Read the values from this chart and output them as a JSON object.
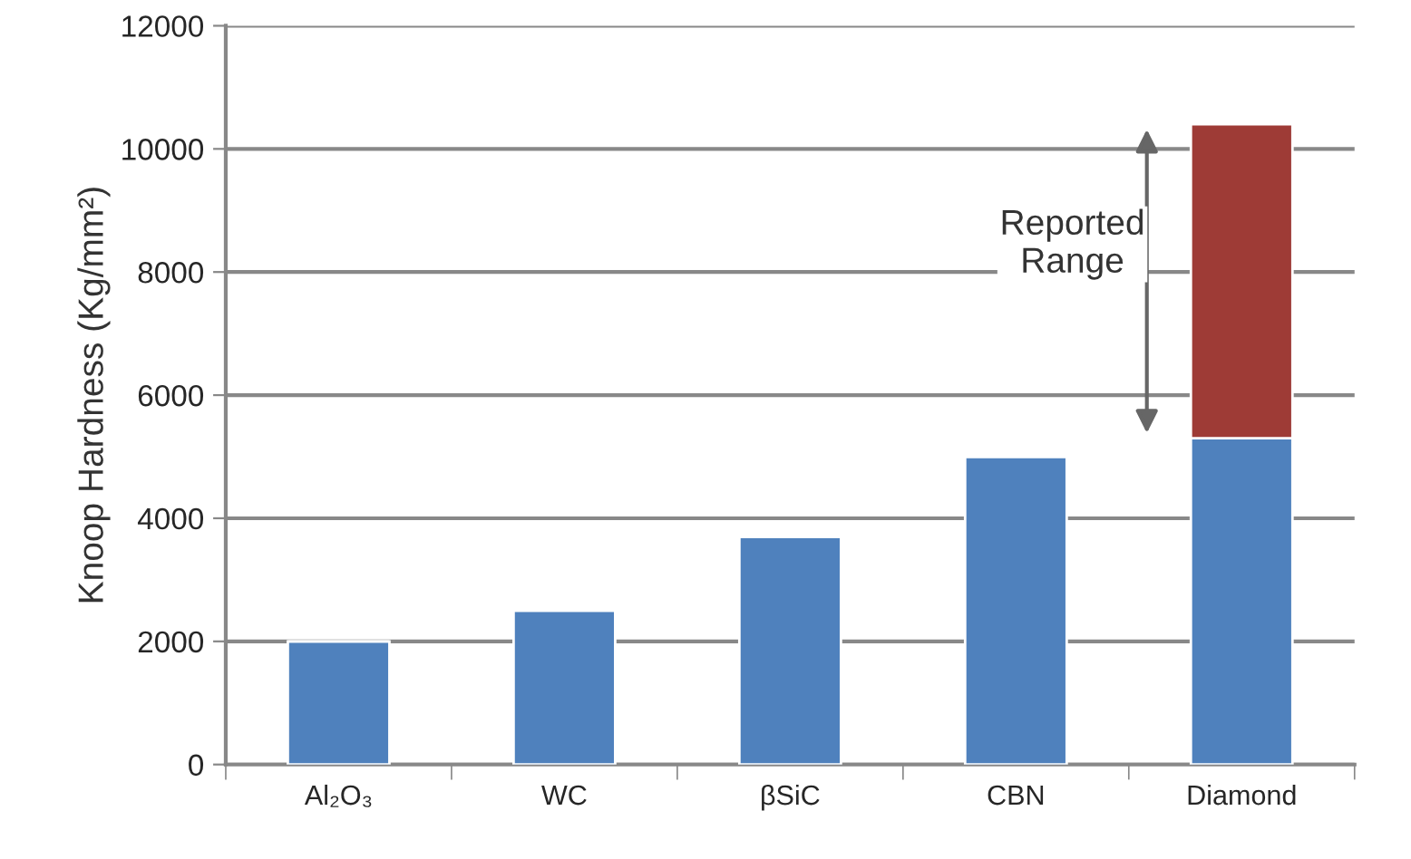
{
  "chart_data": {
    "type": "bar",
    "stacked": true,
    "ylabel": "Knoop Hardness (Kg/mm²)",
    "categories": [
      "Al₂O₃",
      "WC",
      "βSiC",
      "CBN",
      "Diamond"
    ],
    "series": [
      {
        "color": "#4f81bd",
        "values": [
          2000,
          2500,
          3700,
          5000,
          5300
        ]
      },
      {
        "color": "#9e3b36",
        "values": [
          null,
          null,
          null,
          null,
          5100
        ]
      }
    ],
    "ylim": [
      0,
      12000
    ],
    "yticks": [
      0,
      2000,
      4000,
      6000,
      8000,
      10000,
      12000
    ],
    "grid": "y",
    "legend": false,
    "annotations": [
      "Reported\nRange"
    ]
  }
}
